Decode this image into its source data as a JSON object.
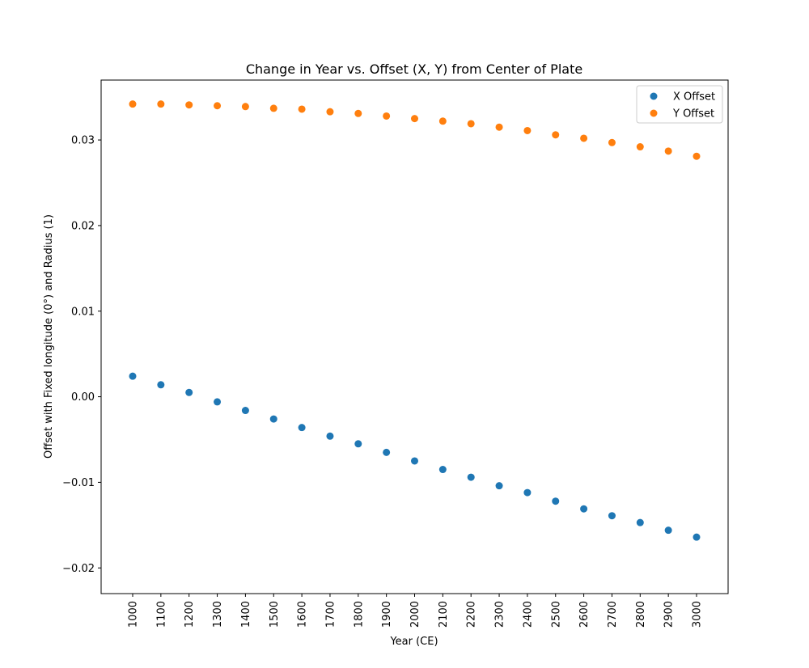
{
  "chart_data": {
    "type": "scatter",
    "title": "Change in Year vs. Offset (X, Y) from Center of Plate",
    "xlabel": "Year (CE)",
    "ylabel": "Offset with Fixed longitude (0°) and Radius (1)",
    "ylim": [
      -0.023,
      0.037
    ],
    "x_ticks": [
      "1000",
      "1100",
      "1200",
      "1300",
      "1400",
      "1500",
      "1600",
      "1700",
      "1800",
      "1900",
      "2000",
      "2100",
      "2200",
      "2300",
      "2400",
      "2500",
      "2600",
      "2700",
      "2800",
      "2900",
      "3000"
    ],
    "y_ticks": [
      {
        "value": -0.02,
        "label": "−0.02"
      },
      {
        "value": -0.01,
        "label": "−0.01"
      },
      {
        "value": 0.0,
        "label": "0.00"
      },
      {
        "value": 0.01,
        "label": "0.01"
      },
      {
        "value": 0.02,
        "label": "0.02"
      },
      {
        "value": 0.03,
        "label": "0.03"
      }
    ],
    "x": [
      1000,
      1100,
      1200,
      1300,
      1400,
      1500,
      1600,
      1700,
      1800,
      1900,
      2000,
      2100,
      2200,
      2300,
      2400,
      2500,
      2600,
      2700,
      2800,
      2900,
      3000
    ],
    "series": [
      {
        "name": "X Offset",
        "color": "#1f77b4",
        "values": [
          0.0024,
          0.0014,
          0.0005,
          -0.0006,
          -0.0016,
          -0.0026,
          -0.0036,
          -0.0046,
          -0.0055,
          -0.0065,
          -0.0075,
          -0.0085,
          -0.0094,
          -0.0104,
          -0.0112,
          -0.0122,
          -0.0131,
          -0.0139,
          -0.0147,
          -0.0156,
          -0.0164
        ]
      },
      {
        "name": "Y Offset",
        "color": "#ff7f0e",
        "values": [
          0.0342,
          0.0342,
          0.0341,
          0.034,
          0.0339,
          0.0337,
          0.0336,
          0.0333,
          0.0331,
          0.0328,
          0.0325,
          0.0322,
          0.0319,
          0.0315,
          0.0311,
          0.0306,
          0.0302,
          0.0297,
          0.0292,
          0.0287,
          0.0281
        ]
      }
    ],
    "legend": "top-right",
    "grid": false
  }
}
